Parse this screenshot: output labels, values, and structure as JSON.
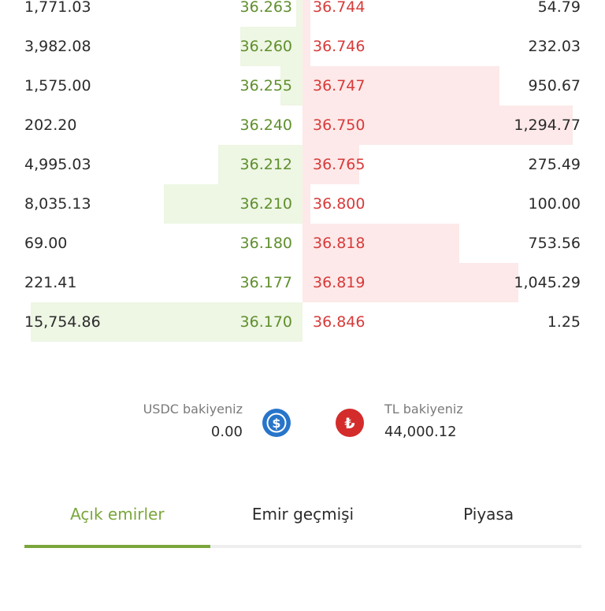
{
  "colors": {
    "bid_text": "#5f8f2c",
    "bid_depth": "#eef6e4",
    "ask_text": "#d83a3a",
    "ask_depth": "#fde9e9",
    "text": "#2b2b2b",
    "muted": "#7a7a7a",
    "accent": "#7aa63a",
    "usdc_coin": "#2775ca",
    "tl_coin": "#d42b2b",
    "peek_red": "#d83a3a"
  },
  "orderbook": {
    "rows": [
      {
        "bid_amount": "1,771.03",
        "bid_price": "36.263",
        "bid_depth": 0.023,
        "ask_price": "36.744",
        "ask_amount": "54.79",
        "ask_depth": 0.03
      },
      {
        "bid_amount": "3,982.08",
        "bid_price": "36.260",
        "bid_depth": 0.23,
        "ask_price": "36.746",
        "ask_amount": "232.03",
        "ask_depth": 0.03
      },
      {
        "bid_amount": "1,575.00",
        "bid_price": "36.255",
        "bid_depth": 0.08,
        "ask_price": "36.747",
        "ask_amount": "950.67",
        "ask_depth": 0.73
      },
      {
        "bid_amount": "202.20",
        "bid_price": "36.240",
        "bid_depth": 0.0,
        "ask_price": "36.750",
        "ask_amount": "1,294.77",
        "ask_depth": 1.0
      },
      {
        "bid_amount": "4,995.03",
        "bid_price": "36.212",
        "bid_depth": 0.31,
        "ask_price": "36.765",
        "ask_amount": "275.49",
        "ask_depth": 0.21
      },
      {
        "bid_amount": "8,035.13",
        "bid_price": "36.210",
        "bid_depth": 0.51,
        "ask_price": "36.800",
        "ask_amount": "100.00",
        "ask_depth": 0.03
      },
      {
        "bid_amount": "69.00",
        "bid_price": "36.180",
        "bid_depth": 0.0,
        "ask_price": "36.818",
        "ask_amount": "753.56",
        "ask_depth": 0.58
      },
      {
        "bid_amount": "221.41",
        "bid_price": "36.177",
        "bid_depth": 0.0,
        "ask_price": "36.819",
        "ask_amount": "1,045.29",
        "ask_depth": 0.8
      },
      {
        "bid_amount": "15,754.86",
        "bid_price": "36.170",
        "bid_depth": 1.0,
        "ask_price": "36.846",
        "ask_amount": "1.25",
        "ask_depth": 0.0
      }
    ]
  },
  "balances": {
    "usdc": {
      "label": "USDC bakiyeniz",
      "value": "0.00",
      "icon": "usdc-coin-icon"
    },
    "tl": {
      "label": "TL bakiyeniz",
      "value": "44,000.12",
      "icon": "lira-coin-icon"
    }
  },
  "tabs": [
    {
      "label": "Açık emirler",
      "active": true
    },
    {
      "label": "Emir geçmişi",
      "active": false
    },
    {
      "label": "Piyasa",
      "active": false
    }
  ],
  "order_peek": {
    "pair": "",
    "type": "",
    "price": ""
  }
}
